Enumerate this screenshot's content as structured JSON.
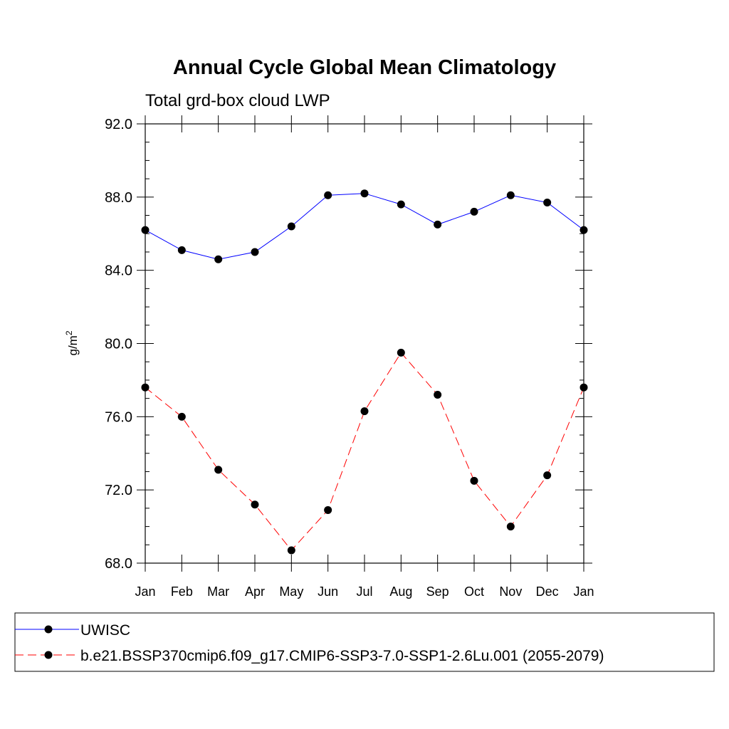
{
  "chart_data": {
    "type": "line",
    "title": "Annual Cycle Global Mean Climatology",
    "subtitle": "Total grd-box cloud LWP",
    "xlabel": "",
    "ylabel": "g/m",
    "ylabel_superscript": "2",
    "categories": [
      "Jan",
      "Feb",
      "Mar",
      "Apr",
      "May",
      "Jun",
      "Jul",
      "Aug",
      "Sep",
      "Oct",
      "Nov",
      "Dec",
      "Jan"
    ],
    "ylim": [
      68.0,
      92.0
    ],
    "yticks": [
      "68.0",
      "72.0",
      "76.0",
      "80.0",
      "84.0",
      "88.0",
      "92.0"
    ],
    "grid": false,
    "legend_position": "bottom",
    "series": [
      {
        "name": "UWISC",
        "color": "#0000ff",
        "dash": "solid",
        "values": [
          86.2,
          85.1,
          84.6,
          85.0,
          86.4,
          88.1,
          88.2,
          87.6,
          86.5,
          87.2,
          88.1,
          87.7,
          86.2
        ]
      },
      {
        "name": "b.e21.BSSP370cmip6.f09_g17.CMIP6-SSP3-7.0-SSP1-2.6Lu.001 (2055-2079)",
        "color": "#ff0000",
        "dash": "dashed",
        "values": [
          77.6,
          76.0,
          73.1,
          71.2,
          68.7,
          70.9,
          76.3,
          79.5,
          77.2,
          72.5,
          70.0,
          72.8,
          77.6
        ]
      }
    ]
  }
}
